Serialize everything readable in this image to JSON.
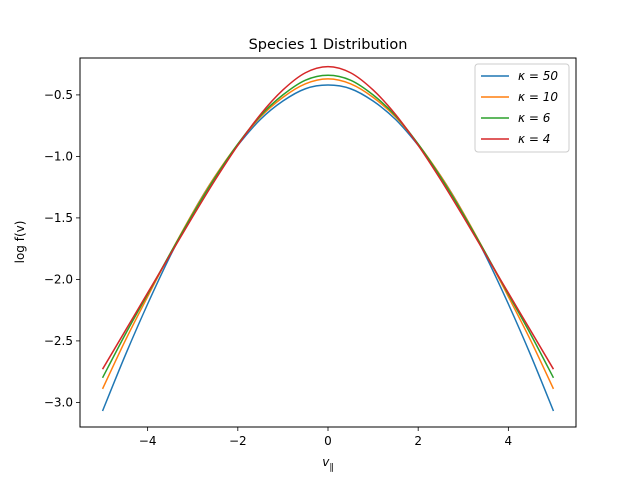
{
  "chart_data": {
    "type": "line",
    "title": "Species 1 Distribution",
    "xlabel": "v_∥",
    "ylabel": "log f(v)",
    "xlim": [
      -5.5,
      5.5
    ],
    "ylim": [
      -3.2,
      -0.2
    ],
    "xticks": [
      -4,
      -2,
      0,
      2,
      4
    ],
    "xtick_labels": [
      "−4",
      "−2",
      "0",
      "2",
      "4"
    ],
    "yticks": [
      -3.0,
      -2.5,
      -2.0,
      -1.5,
      -1.0,
      -0.5
    ],
    "ytick_labels": [
      "−3.0",
      "−2.5",
      "−2.0",
      "−1.5",
      "−1.0",
      "−0.5"
    ],
    "grid": false,
    "legend_position": "top-right",
    "x": [
      -5,
      -4.5,
      -4,
      -3.5,
      -3,
      -2.5,
      -2,
      -1.5,
      -1,
      -0.5,
      0,
      0.5,
      1,
      1.5,
      2,
      2.5,
      3,
      3.5,
      4,
      4.5,
      5
    ],
    "series": [
      {
        "name": "κ = 50",
        "color": "#1f77b4",
        "values": [
          -3.07,
          -2.62,
          -2.2,
          -1.81,
          -1.46,
          -1.16,
          -0.91,
          -0.7,
          -0.55,
          -0.45,
          -0.42,
          -0.45,
          -0.55,
          -0.7,
          -0.91,
          -1.16,
          -1.46,
          -1.81,
          -2.2,
          -2.62,
          -3.07
        ]
      },
      {
        "name": "κ = 10",
        "color": "#ff7f0e",
        "values": [
          -2.89,
          -2.5,
          -2.14,
          -1.79,
          -1.46,
          -1.16,
          -0.9,
          -0.68,
          -0.52,
          -0.41,
          -0.37,
          -0.41,
          -0.52,
          -0.68,
          -0.9,
          -1.16,
          -1.46,
          -1.79,
          -2.14,
          -2.5,
          -2.89
        ]
      },
      {
        "name": "κ = 6",
        "color": "#2ca02c",
        "values": [
          -2.8,
          -2.45,
          -2.12,
          -1.79,
          -1.47,
          -1.17,
          -0.9,
          -0.67,
          -0.5,
          -0.38,
          -0.34,
          -0.38,
          -0.5,
          -0.67,
          -0.9,
          -1.17,
          -1.47,
          -1.79,
          -2.12,
          -2.45,
          -2.8
        ]
      },
      {
        "name": "κ = 4",
        "color": "#d62728",
        "values": [
          -2.73,
          -2.42,
          -2.11,
          -1.8,
          -1.49,
          -1.19,
          -0.91,
          -0.66,
          -0.46,
          -0.32,
          -0.27,
          -0.32,
          -0.46,
          -0.66,
          -0.91,
          -1.19,
          -1.49,
          -1.8,
          -2.11,
          -2.42,
          -2.73
        ]
      }
    ]
  }
}
